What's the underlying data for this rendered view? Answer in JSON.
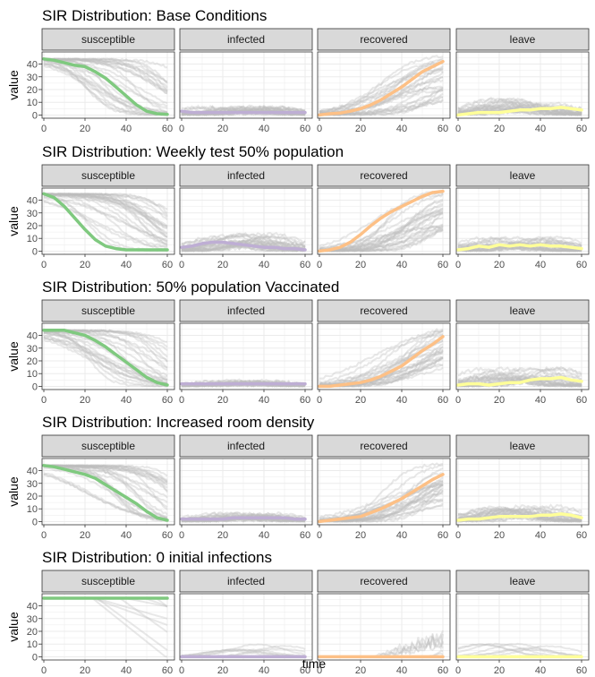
{
  "chart_data": {
    "type": "line",
    "layout": "faceted small multiples, 5 scenarios x 4 compartments",
    "xlabel": "time",
    "ylabel": "value",
    "xlim": [
      0,
      60
    ],
    "ylim": [
      0,
      45
    ],
    "x_ticks": [
      0,
      20,
      40,
      60
    ],
    "y_ticks": [
      0,
      10,
      20,
      30,
      40
    ],
    "grid": true,
    "background_traces_color": "#bdbdbd",
    "facet_labels": [
      "susceptible",
      "infected",
      "recovered",
      "leave"
    ],
    "facet_colors": {
      "susceptible": "#7fc97f",
      "infected": "#beaed4",
      "recovered": "#fdc086",
      "leave": "#ffff99"
    },
    "mean_x": [
      0,
      5,
      10,
      15,
      20,
      25,
      30,
      35,
      40,
      45,
      50,
      55,
      60
    ],
    "scenarios": [
      {
        "title": "SIR Distribution: Base Conditions",
        "series": [
          {
            "facet": "susceptible",
            "values": [
              44,
              43,
              41,
              39,
              38,
              34,
              29,
              22,
              15,
              8,
              3,
              1,
              0.5
            ]
          },
          {
            "facet": "infected",
            "values": [
              3,
              2,
              2,
              2,
              2,
              2,
              2,
              2,
              2,
              2,
              2,
              2,
              2
            ]
          },
          {
            "facet": "recovered",
            "values": [
              0,
              1,
              1.5,
              3,
              5,
              8,
              12,
              17,
              22,
              28,
              34,
              38,
              42
            ]
          },
          {
            "facet": "leave",
            "values": [
              0,
              1,
              2,
              2,
              2,
              3,
              4,
              4,
              5,
              5,
              6,
              5,
              4
            ]
          }
        ]
      },
      {
        "title": "SIR Distribution: Weekly test 50% population",
        "series": [
          {
            "facet": "susceptible",
            "values": [
              45,
              42,
              35,
              26,
              17,
              9,
              4,
              2,
              1,
              1,
              1,
              1,
              1
            ]
          },
          {
            "facet": "infected",
            "values": [
              3,
              4,
              6,
              7,
              7,
              6,
              5,
              4,
              3,
              3,
              2,
              2,
              1
            ]
          },
          {
            "facet": "recovered",
            "values": [
              0,
              1,
              3,
              7,
              13,
              20,
              26,
              31,
              35,
              39,
              43,
              46,
              47
            ]
          },
          {
            "facet": "leave",
            "values": [
              1,
              2,
              4,
              3,
              5,
              4,
              5,
              4,
              5,
              4,
              4,
              3,
              2
            ]
          }
        ]
      },
      {
        "title": "SIR Distribution: 50% population Vaccinated",
        "series": [
          {
            "facet": "susceptible",
            "values": [
              44,
              44,
              44,
              42,
              40,
              36,
              31,
              25,
              19,
              13,
              7,
              3,
              1
            ]
          },
          {
            "facet": "infected",
            "values": [
              2,
              2,
              2,
              2,
              2,
              2,
              2,
              2,
              2,
              2,
              2,
              2,
              2
            ]
          },
          {
            "facet": "recovered",
            "values": [
              0,
              0,
              1,
              2,
              3,
              5,
              8,
              12,
              16,
              22,
              28,
              33,
              39
            ]
          },
          {
            "facet": "leave",
            "values": [
              1,
              2,
              2,
              1,
              2,
              3,
              3,
              5,
              6,
              6,
              7,
              5,
              4
            ]
          }
        ]
      },
      {
        "title": "SIR Distribution: Increased room density",
        "series": [
          {
            "facet": "susceptible",
            "values": [
              44,
              43,
              41,
              39,
              37,
              34,
              29,
              24,
              19,
              14,
              8,
              3,
              1
            ]
          },
          {
            "facet": "infected",
            "values": [
              2,
              2,
              2,
              2,
              2,
              3,
              3,
              3,
              3,
              3,
              3,
              2,
              2
            ]
          },
          {
            "facet": "recovered",
            "values": [
              0,
              1,
              2,
              3,
              4,
              7,
              10,
              14,
              18,
              23,
              28,
              33,
              37
            ]
          },
          {
            "facet": "leave",
            "values": [
              1,
              2,
              2,
              3,
              4,
              4,
              4,
              4,
              5,
              5,
              6,
              5,
              3
            ]
          }
        ]
      },
      {
        "title": "SIR Distribution: 0 initial infections",
        "series": [
          {
            "facet": "susceptible",
            "values": [
              46,
              46,
              46,
              46,
              46,
              46,
              46,
              46,
              46,
              46,
              46,
              46,
              46
            ]
          },
          {
            "facet": "infected",
            "values": [
              0,
              0,
              0,
              0,
              0,
              0,
              0,
              0,
              0,
              0,
              0,
              0,
              0
            ]
          },
          {
            "facet": "recovered",
            "values": [
              0,
              0,
              0,
              0,
              0,
              0,
              0,
              0,
              0,
              0,
              0,
              0,
              0
            ]
          },
          {
            "facet": "leave",
            "values": [
              0,
              0,
              0,
              0,
              0,
              0,
              0,
              0,
              0,
              0,
              0,
              0,
              0
            ]
          }
        ]
      }
    ]
  }
}
